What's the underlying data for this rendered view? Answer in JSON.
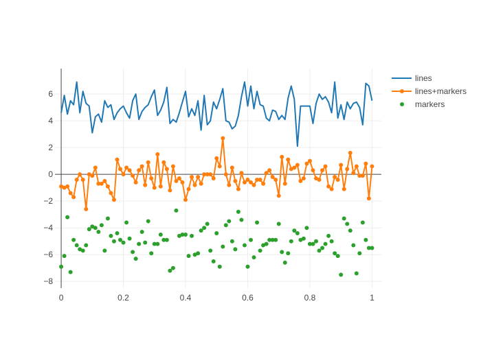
{
  "chart_data": {
    "type": "line",
    "xlim": [
      -0.02,
      1.03
    ],
    "ylim": [
      -8.5,
      7.9
    ],
    "grid": true,
    "legend_position": "top-right",
    "x_ticks": [
      0,
      0.2,
      0.4,
      0.6,
      0.8,
      1
    ],
    "x_tick_labels": [
      "0",
      "0.2",
      "0.4",
      "0.6",
      "0.8",
      "1"
    ],
    "y_ticks": [
      -8,
      -6,
      -4,
      -2,
      0,
      2,
      4,
      6
    ],
    "y_tick_labels": [
      "−8",
      "−6",
      "−4",
      "−2",
      "0",
      "2",
      "4",
      "6"
    ],
    "x": [
      0,
      0.01,
      0.02,
      0.03,
      0.04,
      0.05,
      0.06,
      0.07,
      0.08,
      0.09,
      0.1,
      0.11,
      0.12,
      0.13,
      0.14,
      0.15,
      0.16,
      0.17,
      0.18,
      0.19,
      0.2,
      0.21,
      0.22,
      0.23,
      0.24,
      0.25,
      0.26,
      0.27,
      0.28,
      0.29,
      0.3,
      0.31,
      0.32,
      0.33,
      0.34,
      0.35,
      0.36,
      0.37,
      0.38,
      0.39,
      0.4,
      0.41,
      0.42,
      0.43,
      0.44,
      0.45,
      0.46,
      0.47,
      0.48,
      0.49,
      0.5,
      0.51,
      0.52,
      0.53,
      0.54,
      0.55,
      0.56,
      0.57,
      0.58,
      0.59,
      0.6,
      0.61,
      0.62,
      0.63,
      0.64,
      0.65,
      0.66,
      0.67,
      0.68,
      0.69,
      0.7,
      0.71,
      0.72,
      0.73,
      0.74,
      0.75,
      0.76,
      0.77,
      0.78,
      0.79,
      0.8,
      0.81,
      0.82,
      0.83,
      0.84,
      0.85,
      0.86,
      0.87,
      0.88,
      0.89,
      0.9,
      0.91,
      0.92,
      0.93,
      0.94,
      0.95,
      0.96,
      0.97,
      0.98,
      0.99,
      1.0
    ],
    "series": [
      {
        "name": "lines",
        "mode": "lines",
        "color": "#1f77b4",
        "values": [
          4.6,
          5.9,
          4.5,
          5.5,
          5.2,
          6.9,
          4.6,
          6.2,
          5.3,
          5.1,
          3.1,
          4.3,
          4.5,
          3.9,
          5.5,
          5.0,
          5.2,
          4.1,
          4.6,
          4.9,
          5.1,
          4.6,
          4.2,
          5.5,
          6.0,
          4.1,
          4.7,
          5.0,
          5.2,
          5.8,
          6.3,
          4.4,
          4.8,
          5.4,
          6.5,
          3.8,
          4.1,
          3.9,
          4.6,
          5.4,
          6.2,
          4.3,
          4.9,
          4.4,
          5.5,
          3.3,
          5.9,
          3.7,
          4.0,
          5.4,
          4.9,
          5.6,
          6.4,
          4.0,
          3.9,
          3.4,
          3.6,
          4.4,
          5.8,
          6.9,
          5.1,
          6.6,
          4.9,
          6.2,
          5.2,
          5.1,
          4.2,
          4.0,
          4.8,
          4.7,
          4.1,
          4.4,
          4.1,
          5.7,
          6.6,
          5.6,
          2.1,
          5.1,
          5.1,
          5.1,
          5.1,
          3.8,
          5.3,
          6.0,
          5.6,
          5.8,
          5.4,
          4.6,
          6.9,
          4.2,
          5.2,
          4.1,
          5.4,
          4.9,
          5.3,
          5.4,
          5.0,
          3.7,
          6.8,
          6.6,
          5.5
        ]
      },
      {
        "name": "lines+markers",
        "mode": "lines+markers",
        "color": "#ff7f0e",
        "values": [
          -0.9,
          -1.0,
          -0.9,
          -1.4,
          -1.7,
          -0.4,
          0.0,
          -0.4,
          -2.6,
          0.0,
          -0.1,
          0.5,
          -0.7,
          -0.7,
          -0.5,
          -0.9,
          -1.4,
          -1.9,
          1.1,
          0.4,
          0.0,
          0.5,
          0.3,
          -0.1,
          -0.6,
          0.3,
          0.6,
          -0.8,
          0.9,
          -0.3,
          -1.0,
          1.5,
          -0.9,
          0.9,
          0.4,
          -1.2,
          0.6,
          -0.5,
          -0.3,
          -0.6,
          -1.9,
          -1.1,
          -0.2,
          -0.8,
          -0.2,
          -0.7,
          0.0,
          0.0,
          0.0,
          -0.3,
          1.2,
          0.6,
          2.7,
          0.0,
          -0.8,
          0.5,
          -0.5,
          -1.1,
          0.1,
          -0.6,
          -0.4,
          -0.6,
          -0.8,
          -0.4,
          -0.4,
          -0.7,
          0.1,
          0.3,
          -0.2,
          -0.4,
          -1.6,
          1.3,
          -0.7,
          1.1,
          0.4,
          0.5,
          0.7,
          -0.5,
          -0.3,
          0.8,
          1.0,
          0.3,
          -0.3,
          -0.4,
          0.3,
          0.6,
          -0.9,
          -1.1,
          -0.2,
          -0.4,
          0.7,
          -1.1,
          0.4,
          1.6,
          0.1,
          0.6,
          -0.1,
          -0.1,
          0.8,
          -1.8,
          0.6
        ]
      },
      {
        "name": "markers",
        "mode": "markers",
        "color": "#2ca02c",
        "values": [
          -6.9,
          -6.1,
          -3.2,
          -7.3,
          -4.9,
          -5.3,
          -5.6,
          -5.7,
          -5.3,
          -4.1,
          -3.9,
          -4.0,
          -4.3,
          -3.8,
          -5.7,
          -3.3,
          -4.6,
          -5.0,
          -4.4,
          -4.9,
          -5.1,
          -3.6,
          -4.8,
          -5.8,
          -6.3,
          -5.2,
          -4.3,
          -5.1,
          -3.5,
          -5.9,
          -5.2,
          -5.2,
          -4.5,
          -4.9,
          -4.9,
          -7.2,
          -7.0,
          -2.7,
          -4.6,
          -4.5,
          -4.5,
          -6.1,
          -4.6,
          -6.0,
          -5.9,
          -4.2,
          -4.0,
          -3.7,
          -5.7,
          -6.5,
          -4.4,
          -6.9,
          -5.4,
          -3.8,
          -3.5,
          -5.0,
          -5.6,
          -2.8,
          -3.4,
          -5.3,
          -6.9,
          -4.9,
          -6.2,
          -3.6,
          -5.7,
          -5.3,
          -5.2,
          -4.9,
          -4.9,
          -4.9,
          -3.7,
          -5.8,
          -6.6,
          -5.9,
          -5.0,
          -4.2,
          -4.4,
          -4.9,
          -4.8,
          -4.0,
          -5.2,
          -5.2,
          -5.0,
          -5.7,
          -5.5,
          -5.2,
          -4.6,
          -5.0,
          -5.9,
          -6.1,
          -7.5,
          -3.3,
          -3.7,
          -4.2,
          -5.3,
          -7.4,
          -5.9,
          -3.6,
          -4.9,
          -5.5,
          -5.5
        ]
      }
    ]
  }
}
